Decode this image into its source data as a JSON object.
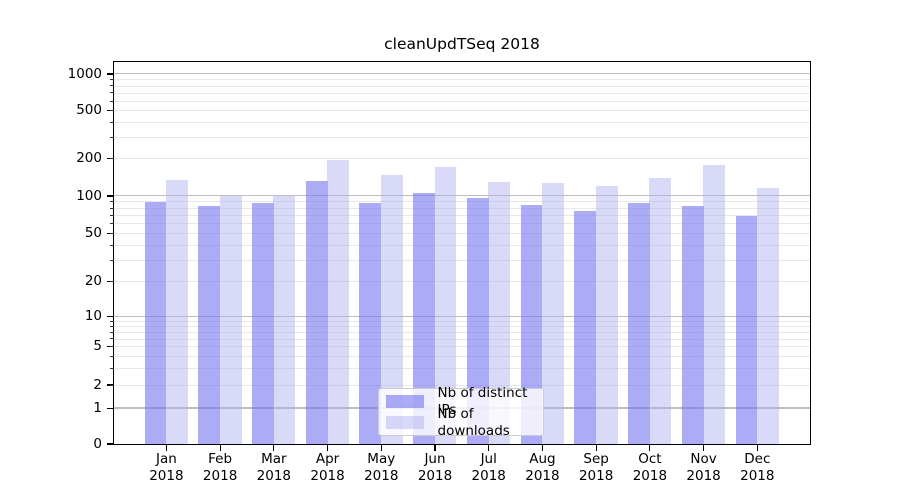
{
  "chart_data": {
    "type": "bar",
    "title": "cleanUpdTSeq 2018",
    "categories": [
      "Jan",
      "Feb",
      "Mar",
      "Apr",
      "May",
      "Jun",
      "Jul",
      "Aug",
      "Sep",
      "Oct",
      "Nov",
      "Dec"
    ],
    "x_tick_year": "2018",
    "series": [
      {
        "name": "Nb of distinct IPs",
        "color": "rgba(115,115,240,0.6)",
        "values": [
          89,
          83,
          87,
          131,
          87,
          105,
          96,
          84,
          75,
          87,
          83,
          69
        ]
      },
      {
        "name": "Nb of downloads",
        "color": "rgba(170,170,240,0.45)",
        "values": [
          134,
          100,
          100,
          195,
          147,
          172,
          130,
          127,
          119,
          138,
          176,
          116
        ]
      }
    ],
    "y_ticks": [
      0,
      1,
      2,
      5,
      10,
      20,
      50,
      100,
      200,
      500,
      1000
    ],
    "y_scale": "symlog",
    "ylim": [
      0,
      1254
    ],
    "xlabel": "",
    "ylabel": "",
    "grid": true,
    "legend_position": "lower center"
  },
  "colors": {
    "major_grid": "#bdbdbd",
    "minor_grid": "#e8e8e8",
    "spine": "#000000",
    "legend_border": "#cccccc",
    "legend_background": "rgba(255,255,255,0.8)"
  }
}
